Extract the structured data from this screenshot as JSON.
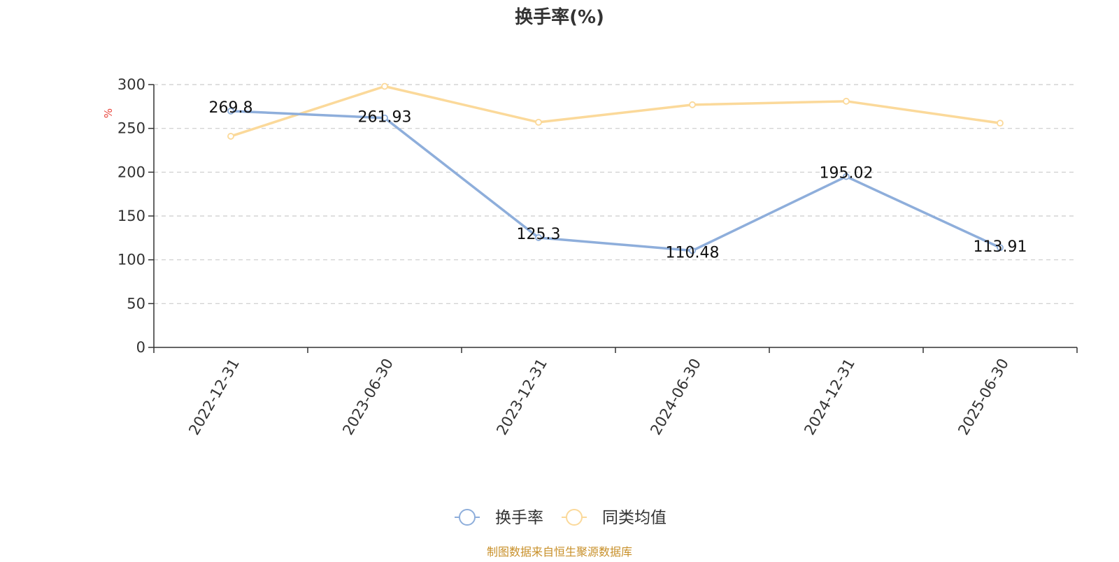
{
  "chart_data": {
    "type": "line",
    "title": "换手率(%)",
    "ylabel": "%",
    "xlabel": "",
    "categories": [
      "2022-12-31",
      "2023-06-30",
      "2023-12-31",
      "2024-06-30",
      "2024-12-31",
      "2025-06-30"
    ],
    "ylim": [
      0,
      300
    ],
    "yticks": [
      0,
      50,
      100,
      150,
      200,
      250,
      300
    ],
    "grid": true,
    "legend_position": "bottom-center",
    "series": [
      {
        "name": "换手率",
        "color": "#8eaedb",
        "values": [
          269.8,
          261.93,
          125.3,
          110.48,
          195.02,
          113.91
        ],
        "data_labels": [
          "269.8",
          "261.93",
          "125.3",
          "110.48",
          "195.02",
          "113.91"
        ]
      },
      {
        "name": "同类均值",
        "color": "#fbd99a",
        "values": [
          241,
          298,
          257,
          277,
          281,
          256
        ]
      }
    ],
    "source_note": "制图数据来自恒生聚源数据库",
    "colors": {
      "ylabel": "#e8453c",
      "source_note": "#c8902a",
      "axis": "#333333",
      "grid": "#cccccc",
      "text": "#333333"
    }
  }
}
